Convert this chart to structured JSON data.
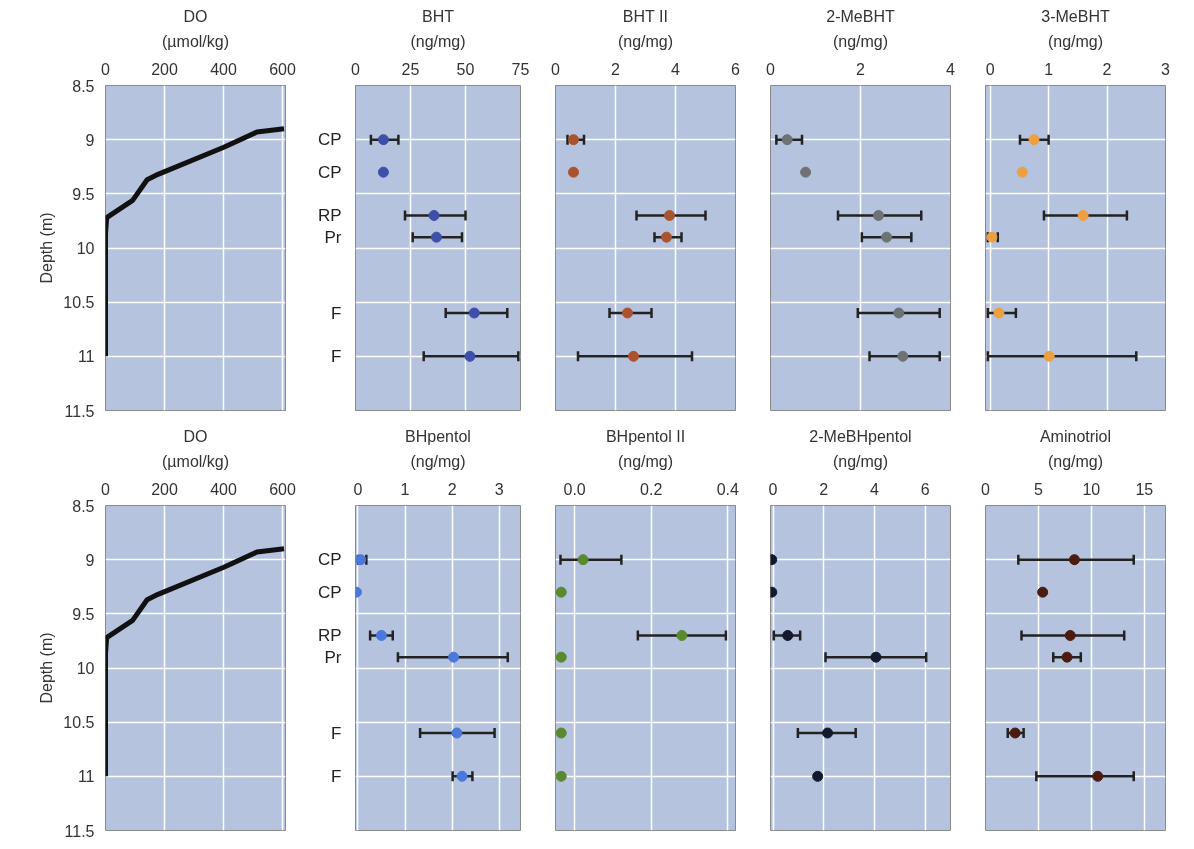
{
  "chart_data": [
    {
      "type": "line",
      "orientation": "horizontal",
      "title": "DO",
      "xlabel": "(µmol/kg)",
      "ylabel": "Depth (m)",
      "x": [
        8.9,
        8.93,
        9.07,
        9.32,
        9.37,
        9.56,
        9.72,
        9.87,
        11.0
      ],
      "values": [
        605,
        513,
        401,
        178,
        141,
        92,
        4,
        0,
        0
      ],
      "color": "#111111",
      "marker": "none",
      "line_style": "solid",
      "xlim": [
        0,
        610
      ],
      "xticks": [
        0,
        200,
        400,
        600
      ],
      "ylim": [
        11.5,
        8.5
      ],
      "yticks": [
        8.5,
        9,
        9.5,
        10,
        10.5,
        11,
        11.5
      ],
      "grid": true
    },
    {
      "type": "scatter",
      "orientation": "horizontal",
      "title": "BHT",
      "xlabel": "(ng/mg)",
      "x": [
        9.0,
        9.3,
        9.7,
        9.9,
        10.6,
        11.0
      ],
      "values": [
        12.7,
        12.7,
        35.7,
        36.8,
        54,
        52
      ],
      "errors": [
        [
          7,
          19.5
        ],
        null,
        [
          22.5,
          50
        ],
        [
          26,
          48.4
        ],
        [
          41,
          69
        ],
        [
          31,
          74
        ]
      ],
      "color": "#3d4fa8",
      "marker": "circle",
      "xlim": [
        0,
        75
      ],
      "xticks": [
        0,
        25,
        50,
        75
      ],
      "ylim": [
        11.5,
        8.5
      ],
      "yticks": [
        8.5,
        9,
        9.5,
        10,
        10.5,
        11,
        11.5
      ],
      "grid": true,
      "tick_labels": "x",
      "annotations": [
        "CP",
        "CP",
        "RP",
        "Pr",
        "F",
        "F"
      ]
    },
    {
      "type": "scatter",
      "orientation": "horizontal",
      "title": "BHT II",
      "xlabel": "(ng/mg)",
      "x": [
        9.0,
        9.3,
        9.7,
        9.9,
        10.6,
        11.0
      ],
      "values": [
        0.6,
        0.6,
        3.8,
        3.7,
        2.4,
        2.6
      ],
      "errors": [
        [
          0.4,
          0.95
        ],
        null,
        [
          2.7,
          5.0
        ],
        [
          3.3,
          4.2
        ],
        [
          1.8,
          3.2
        ],
        [
          0.75,
          4.55
        ]
      ],
      "color": "#a9542e",
      "marker": "circle",
      "xlim": [
        0,
        6
      ],
      "xticks": [
        0,
        2,
        4,
        6
      ],
      "ylim": [
        11.5,
        8.5
      ],
      "yticks": [
        8.5,
        9,
        9.5,
        10,
        10.5,
        11,
        11.5
      ],
      "grid": true,
      "tick_labels": "x"
    },
    {
      "type": "scatter",
      "orientation": "horizontal",
      "title": "2-MeBHT",
      "xlabel": "(ng/mg)",
      "x": [
        9.0,
        9.3,
        9.7,
        9.9,
        10.6,
        11.0
      ],
      "values": [
        0.37,
        0.78,
        2.4,
        2.58,
        2.85,
        2.94
      ],
      "errors": [
        [
          0.13,
          0.7
        ],
        null,
        [
          1.5,
          3.35
        ],
        [
          2.03,
          3.13
        ],
        [
          1.94,
          3.76
        ],
        [
          2.2,
          3.76
        ]
      ],
      "color": "#6f7275",
      "marker": "circle",
      "xlim": [
        0,
        4
      ],
      "xticks": [
        0,
        2,
        4
      ],
      "ylim": [
        11.5,
        8.5
      ],
      "yticks": [
        8.5,
        9,
        9.5,
        10,
        10.5,
        11,
        11.5
      ],
      "grid": true,
      "tick_labels": "x"
    },
    {
      "type": "scatter",
      "orientation": "horizontal",
      "title": "3-MeBHT",
      "xlabel": "(ng/mg)",
      "x": [
        9.0,
        9.3,
        9.7,
        9.9,
        10.6,
        11.0
      ],
      "values": [
        0.75,
        0.55,
        1.59,
        0.03,
        0.15,
        1.01
      ],
      "errors": [
        [
          0.51,
          1.0
        ],
        null,
        [
          0.92,
          2.34
        ],
        [
          -0.04,
          0.13
        ],
        [
          -0.04,
          0.44
        ],
        [
          -0.04,
          2.5
        ]
      ],
      "color": "#eea040",
      "marker": "circle",
      "xlim": [
        -0.08,
        3
      ],
      "xticks": [
        0,
        1,
        2,
        3
      ],
      "ylim": [
        11.5,
        8.5
      ],
      "yticks": [
        8.5,
        9,
        9.5,
        10,
        10.5,
        11,
        11.5
      ],
      "grid": true,
      "tick_labels": "x"
    },
    {
      "type": "line",
      "orientation": "horizontal",
      "title": "DO",
      "xlabel": "(µmol/kg)",
      "ylabel": "Depth (m)",
      "x": [
        8.9,
        8.93,
        9.07,
        9.32,
        9.37,
        9.56,
        9.72,
        9.87,
        11.0
      ],
      "values": [
        605,
        513,
        401,
        178,
        141,
        92,
        4,
        0,
        0
      ],
      "color": "#111111",
      "marker": "none",
      "line_style": "solid",
      "xlim": [
        0,
        610
      ],
      "xticks": [
        0,
        200,
        400,
        600
      ],
      "ylim": [
        11.5,
        8.5
      ],
      "yticks": [
        8.5,
        9,
        9.5,
        10,
        10.5,
        11,
        11.5
      ],
      "grid": true
    },
    {
      "type": "scatter",
      "orientation": "horizontal",
      "title": "BHpentol",
      "xlabel": "(ng/mg)",
      "x": [
        9.0,
        9.3,
        9.7,
        9.9,
        10.6,
        11.0
      ],
      "values": [
        0.06,
        -0.03,
        0.5,
        2.03,
        2.1,
        2.21
      ],
      "errors": [
        [
          0,
          0.18
        ],
        null,
        [
          0.26,
          0.74
        ],
        [
          0.85,
          3.18
        ],
        [
          1.32,
          2.9
        ],
        [
          2.01,
          2.43
        ]
      ],
      "color": "#4a78dc",
      "marker": "circle",
      "xlim": [
        -0.05,
        3.45
      ],
      "xticks": [
        0,
        1,
        2,
        3
      ],
      "ylim": [
        11.5,
        8.5
      ],
      "yticks": [
        8.5,
        9,
        9.5,
        10,
        10.5,
        11,
        11.5
      ],
      "grid": true,
      "tick_labels": "x",
      "annotations": [
        "CP",
        "CP",
        "RP",
        "Pr",
        "F",
        "F"
      ]
    },
    {
      "type": "scatter",
      "orientation": "horizontal",
      "title": "BHpentol II",
      "xlabel": "(ng/mg)",
      "x": [
        9.0,
        9.3,
        9.7,
        9.9,
        10.6,
        11.0
      ],
      "values": [
        0.022,
        -0.035,
        0.28,
        -0.035,
        -0.035,
        -0.035
      ],
      "errors": [
        [
          -0.037,
          0.122
        ],
        null,
        [
          0.165,
          0.395
        ],
        null,
        null,
        null
      ],
      "color": "#5a8a2e",
      "marker": "circle",
      "xlim": [
        -0.05,
        0.42
      ],
      "xticks": [
        {
          "value": 0,
          "label": "0.0"
        },
        0.2,
        0.4
      ],
      "ylim": [
        11.5,
        8.5
      ],
      "yticks": [
        8.5,
        9,
        9.5,
        10,
        10.5,
        11,
        11.5
      ],
      "grid": true,
      "tick_labels": "x"
    },
    {
      "type": "scatter",
      "orientation": "horizontal",
      "title": "2-MeBHpentol",
      "xlabel": "(ng/mg)",
      "x": [
        9.0,
        9.3,
        9.7,
        9.9,
        10.6,
        11.0
      ],
      "values": [
        -0.05,
        -0.05,
        0.58,
        4.06,
        2.15,
        1.76
      ],
      "errors": [
        null,
        null,
        [
          0.03,
          1.07
        ],
        [
          2.07,
          6.04
        ],
        [
          0.98,
          3.26
        ],
        null
      ],
      "color": "#131a2e",
      "marker": "circle",
      "xlim": [
        -0.1,
        7
      ],
      "xticks": [
        0,
        2,
        4,
        6
      ],
      "ylim": [
        11.5,
        8.5
      ],
      "yticks": [
        8.5,
        9,
        9.5,
        10,
        10.5,
        11,
        11.5
      ],
      "grid": true,
      "tick_labels": "x"
    },
    {
      "type": "scatter",
      "orientation": "horizontal",
      "title": "Aminotriol",
      "xlabel": "(ng/mg)",
      "x": [
        9.0,
        9.3,
        9.7,
        9.9,
        10.6,
        11.0
      ],
      "values": [
        8.4,
        5.4,
        8.0,
        7.7,
        2.8,
        10.6
      ],
      "errors": [
        [
          3.1,
          14.0
        ],
        null,
        [
          3.4,
          13.1
        ],
        [
          6.4,
          9.0
        ],
        [
          2.1,
          3.6
        ],
        [
          4.8,
          14.0
        ]
      ],
      "color": "#4a1c12",
      "marker": "circle",
      "xlim": [
        0,
        17
      ],
      "xticks": [
        0,
        5,
        10,
        15
      ],
      "ylim": [
        11.5,
        8.5
      ],
      "yticks": [
        8.5,
        9,
        9.5,
        10,
        10.5,
        11,
        11.5
      ],
      "grid": true,
      "tick_labels": "x"
    }
  ]
}
